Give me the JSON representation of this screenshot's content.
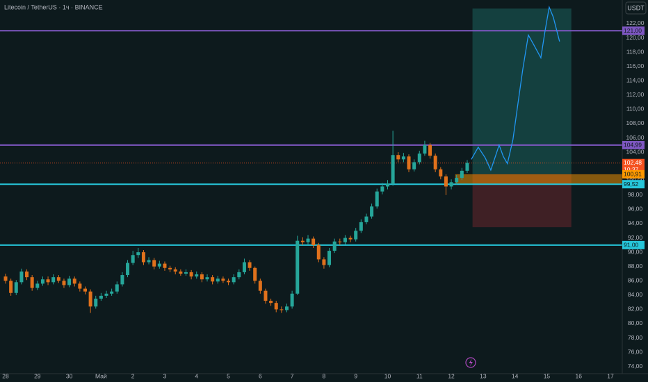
{
  "chart_data": {
    "type": "candlestick",
    "title": "Litecoin / TetherUS · 1ч · BINANCE",
    "currency": "USDT",
    "up_color": "#26a69a",
    "down_color": "#e0711c",
    "x": [
      0,
      4,
      8,
      12,
      16,
      20,
      24,
      28,
      32,
      36,
      40,
      44,
      48,
      52,
      56,
      60,
      64,
      68,
      72,
      76,
      80,
      84,
      88,
      92,
      96,
      100,
      104,
      108,
      112,
      116,
      120,
      124,
      128,
      132,
      136,
      140,
      144,
      148,
      152,
      156,
      160,
      164,
      168,
      172,
      176,
      180,
      184,
      188,
      192,
      196,
      200,
      204,
      208,
      212,
      216,
      220,
      224,
      228,
      232,
      236,
      240,
      244,
      248,
      252,
      256,
      260,
      264,
      268,
      272,
      276,
      280,
      284,
      288,
      292,
      296,
      300,
      304,
      308,
      312,
      316,
      320,
      324,
      328,
      332,
      336,
      340,
      344,
      348
    ],
    "open": [
      86.6,
      86.0,
      84.3,
      85.8,
      87.3,
      86.5,
      85.0,
      85.6,
      86.2,
      85.8,
      86.5,
      86.0,
      85.4,
      86.3,
      85.6,
      84.9,
      84.5,
      82.4,
      83.5,
      83.9,
      84.2,
      84.5,
      85.5,
      86.8,
      88.5,
      89.6,
      90.0,
      88.6,
      88.9,
      88.0,
      88.4,
      87.8,
      87.6,
      87.3,
      87.0,
      87.2,
      86.6,
      86.9,
      86.2,
      86.5,
      85.9,
      86.3,
      86.0,
      85.8,
      86.5,
      87.2,
      88.6,
      87.8,
      86.0,
      84.6,
      83.2,
      82.9,
      82.0,
      81.9,
      82.4,
      84.2,
      91.6,
      91.4,
      91.9,
      91.0,
      89.0,
      88.2,
      90.2,
      91.5,
      91.4,
      92.0,
      91.8,
      93.0,
      94.2,
      95.0,
      96.4,
      98.5,
      99.2,
      99.6,
      103.6,
      103.0,
      103.4,
      101.6,
      102.6,
      103.8,
      105.0,
      103.5,
      101.6,
      100.6,
      99.2,
      99.8,
      100.4,
      101.4
    ],
    "high": [
      87.0,
      86.3,
      86.1,
      87.7,
      87.6,
      86.8,
      86.0,
      86.6,
      86.6,
      86.9,
      86.8,
      86.3,
      86.7,
      86.6,
      85.9,
      85.2,
      84.8,
      83.9,
      84.3,
      84.6,
      84.9,
      85.9,
      87.2,
      88.9,
      90.2,
      90.6,
      90.3,
      89.3,
      89.2,
      88.8,
      88.7,
      88.1,
      87.9,
      87.6,
      87.6,
      87.5,
      87.3,
      87.2,
      86.9,
      86.8,
      86.7,
      86.6,
      86.3,
      86.9,
      87.6,
      89.1,
      88.9,
      88.0,
      86.3,
      84.9,
      83.5,
      83.2,
      82.4,
      82.8,
      84.6,
      92.3,
      92.1,
      92.4,
      92.2,
      91.3,
      89.3,
      90.6,
      91.9,
      91.9,
      92.4,
      92.3,
      93.4,
      94.6,
      95.4,
      96.8,
      98.9,
      99.7,
      100.1,
      107.0,
      104.0,
      103.9,
      103.7,
      103.0,
      104.2,
      105.6,
      105.3,
      103.8,
      101.9,
      100.9,
      100.2,
      100.8,
      101.8,
      102.9
    ],
    "low": [
      85.6,
      83.9,
      84.0,
      85.5,
      86.1,
      84.6,
      84.7,
      85.3,
      85.4,
      85.5,
      85.7,
      85.0,
      85.1,
      85.2,
      84.5,
      84.1,
      81.5,
      82.1,
      83.2,
      83.6,
      83.9,
      84.2,
      85.2,
      86.5,
      88.2,
      89.2,
      88.2,
      88.3,
      87.6,
      87.7,
      87.4,
      87.2,
      86.9,
      86.7,
      86.7,
      86.2,
      86.3,
      85.8,
      85.9,
      85.5,
      85.6,
      85.7,
      85.4,
      85.5,
      86.2,
      86.9,
      87.4,
      85.6,
      84.2,
      82.8,
      82.5,
      81.6,
      81.5,
      81.6,
      82.1,
      84.0,
      91.0,
      91.0,
      90.6,
      88.6,
      87.7,
      87.9,
      89.9,
      91.0,
      91.1,
      91.4,
      91.5,
      92.7,
      93.9,
      94.7,
      96.1,
      98.1,
      98.8,
      99.3,
      102.6,
      102.6,
      101.2,
      101.3,
      102.3,
      103.5,
      103.1,
      101.2,
      100.2,
      98.0,
      98.8,
      99.5,
      100.1,
      101.1
    ],
    "close": [
      86.0,
      84.3,
      85.8,
      87.3,
      86.5,
      85.0,
      85.6,
      86.2,
      85.8,
      86.5,
      86.0,
      85.4,
      86.3,
      85.6,
      84.9,
      84.5,
      82.4,
      83.5,
      83.9,
      84.2,
      84.5,
      85.5,
      86.8,
      88.5,
      89.6,
      90.0,
      88.6,
      88.9,
      88.0,
      88.4,
      87.8,
      87.6,
      87.3,
      87.0,
      87.2,
      86.6,
      86.9,
      86.2,
      86.5,
      85.9,
      86.3,
      86.0,
      85.8,
      86.5,
      87.2,
      88.6,
      87.8,
      86.0,
      84.6,
      83.2,
      82.9,
      82.0,
      81.9,
      82.4,
      84.2,
      91.6,
      91.4,
      91.9,
      91.0,
      89.0,
      88.2,
      90.2,
      91.5,
      91.4,
      92.0,
      91.8,
      93.0,
      94.2,
      95.0,
      96.4,
      98.5,
      99.2,
      99.6,
      103.6,
      103.0,
      103.4,
      101.6,
      102.6,
      103.8,
      105.0,
      103.5,
      101.6,
      100.6,
      99.2,
      99.8,
      100.4,
      101.4,
      102.5
    ],
    "xlim": [
      -4.2,
      464.9
    ],
    "xticks": [
      {
        "value": 0,
        "label": "28"
      },
      {
        "value": 24,
        "label": "29"
      },
      {
        "value": 48,
        "label": "30"
      },
      {
        "value": 72,
        "label": "Май"
      },
      {
        "value": 96,
        "label": "2"
      },
      {
        "value": 120,
        "label": "3"
      },
      {
        "value": 144,
        "label": "4"
      },
      {
        "value": 168,
        "label": "5"
      },
      {
        "value": 192,
        "label": "6"
      },
      {
        "value": 216,
        "label": "7"
      },
      {
        "value": 240,
        "label": "8"
      },
      {
        "value": 264,
        "label": "9"
      },
      {
        "value": 288,
        "label": "10"
      },
      {
        "value": 312,
        "label": "11"
      },
      {
        "value": 336,
        "label": "12"
      },
      {
        "value": 360,
        "label": "13"
      },
      {
        "value": 384,
        "label": "14"
      },
      {
        "value": 408,
        "label": "15"
      },
      {
        "value": 432,
        "label": "16"
      },
      {
        "value": 456,
        "label": "17"
      }
    ],
    "ylim": [
      73.0,
      125.3
    ],
    "yticks": [
      {
        "value": 74,
        "label": "74,00"
      },
      {
        "value": 76,
        "label": "76,00"
      },
      {
        "value": 78,
        "label": "78,00"
      },
      {
        "value": 80,
        "label": "80,00"
      },
      {
        "value": 82,
        "label": "82,00"
      },
      {
        "value": 84,
        "label": "84,00"
      },
      {
        "value": 86,
        "label": "86,00"
      },
      {
        "value": 88,
        "label": "88,00"
      },
      {
        "value": 90,
        "label": "90,00"
      },
      {
        "value": 92,
        "label": "92,00"
      },
      {
        "value": 94,
        "label": "94,00"
      },
      {
        "value": 96,
        "label": "96,00"
      },
      {
        "value": 98,
        "label": "98,00"
      },
      {
        "value": 100,
        "label": "100,00"
      },
      {
        "value": 102,
        "label": "102,00"
      },
      {
        "value": 104,
        "label": "104,00"
      },
      {
        "value": 106,
        "label": "106,00"
      },
      {
        "value": 108,
        "label": "108,00"
      },
      {
        "value": 110,
        "label": "110,00"
      },
      {
        "value": 112,
        "label": "112,00"
      },
      {
        "value": 114,
        "label": "114,00"
      },
      {
        "value": 116,
        "label": "116,00"
      },
      {
        "value": 118,
        "label": "118,00"
      },
      {
        "value": 120,
        "label": "120,00"
      },
      {
        "value": 122,
        "label": "122,00"
      }
    ],
    "zone": {
      "color": "rgba(255,152,0,0.5)",
      "top": 100.91,
      "bottom": 99.52,
      "x_start": 339
    },
    "position": {
      "entry": {
        "value": 100.91,
        "label": "100,91"
      },
      "target": 124.1,
      "stop": 93.5,
      "x_start": 352,
      "x_end": 426.5
    },
    "levels": [
      {
        "value": 121,
        "label": "121,00",
        "color": "#7e57c2"
      },
      {
        "value": 104.99,
        "label": "104,99",
        "color": "#7e57c2"
      },
      {
        "value": 99.52,
        "label": "99,52",
        "color": "#26c6da"
      },
      {
        "value": 91,
        "label": "91,00",
        "color": "#26c6da"
      }
    ],
    "last_price": {
      "value": 102.48,
      "label": "102,48",
      "countdown": "10:37",
      "color": "#f4511e"
    },
    "projection": {
      "color": "#2196f3",
      "x": [
        351.1,
        356.3,
        361.6,
        365.8,
        368.9,
        372.1,
        375.2,
        378.3,
        382.5,
        386.2,
        389.9,
        394.1,
        398.3,
        403.5,
        406.6,
        409.8,
        412.9,
        417.6
      ],
      "values": [
        103.0,
        104.7,
        103.2,
        101.5,
        103.2,
        105.0,
        103.4,
        102.4,
        105.8,
        110.7,
        115.6,
        120.4,
        119.0,
        117.2,
        120.9,
        124.3,
        122.9,
        119.5
      ]
    }
  }
}
